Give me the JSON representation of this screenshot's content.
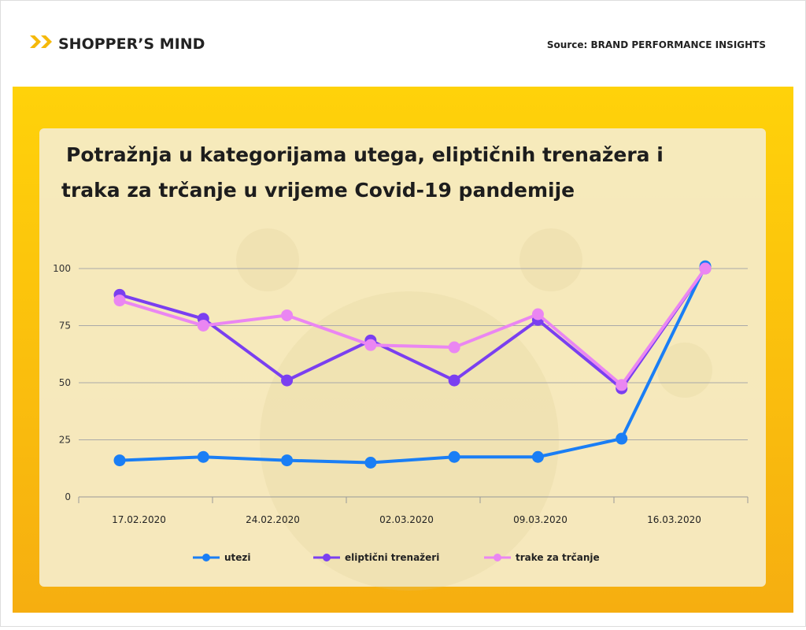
{
  "header": {
    "logo": "SHOPPER’S MIND",
    "source": "Source: BRAND PERFORMANCE INSIGHTS"
  },
  "chart_data": {
    "type": "line",
    "title": "Potražnja u kategorijama utega, eliptičnih trenažera i traka za trčanje u vrijeme Covid-19 pandemije",
    "x_labels": [
      "17.02.2020",
      "24.02.2020",
      "02.03.2020",
      "09.03.2020",
      "16.03.2020"
    ],
    "series": [
      {
        "name": "utezi",
        "color": "#1a7ef5",
        "values": [
          16,
          17.5,
          16,
          15,
          17.5,
          17.5,
          25.5,
          101
        ]
      },
      {
        "name": "eliptični trenažeri",
        "color": "#7a3ff0",
        "values": [
          88.5,
          78,
          51,
          68.5,
          51,
          77.5,
          47.5,
          100
        ]
      },
      {
        "name": "trake za trčanje",
        "color": "#ea86f2",
        "values": [
          86,
          75,
          79.5,
          66.5,
          65.5,
          80,
          49,
          100
        ]
      }
    ],
    "ylim": [
      0,
      100
    ],
    "yticks": [
      0,
      25,
      50,
      75,
      100
    ],
    "grid": true,
    "legend": "bottom"
  }
}
